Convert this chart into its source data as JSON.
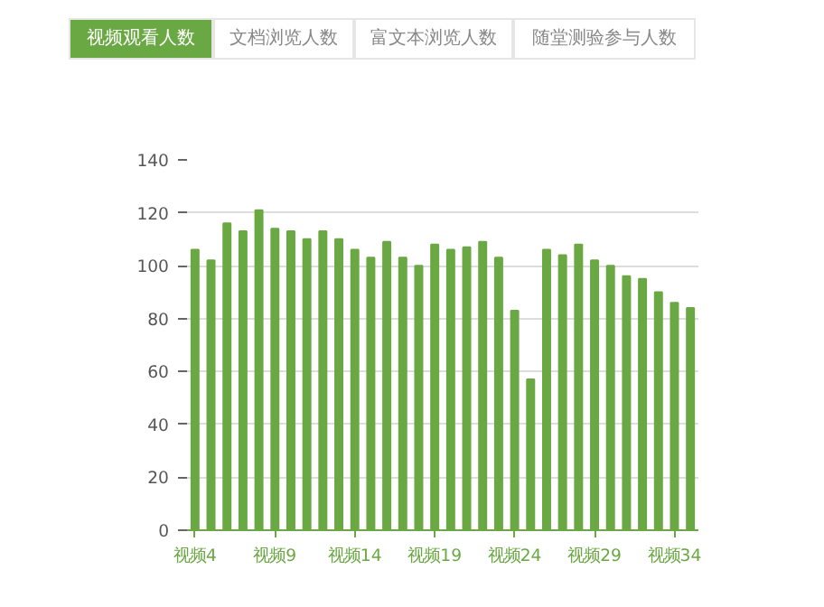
{
  "chart_data": {
    "type": "bar",
    "annotations": [
      "视频观看人数",
      "文档浏览人数",
      "富文本浏览人数",
      "随堂测验参与人数"
    ],
    "categories": [
      "视频4",
      null,
      null,
      null,
      null,
      "视频9",
      null,
      null,
      null,
      null,
      "视频14",
      null,
      null,
      null,
      null,
      "视频19",
      null,
      null,
      null,
      null,
      "视频24",
      null,
      null,
      null,
      null,
      "视频29",
      null,
      null,
      null,
      null,
      "视频34",
      null
    ],
    "values": [
      106,
      102,
      116,
      113,
      121,
      114,
      113,
      110,
      113,
      110,
      106,
      103,
      109,
      103,
      100,
      108,
      106,
      107,
      109,
      103,
      83,
      57,
      106,
      104,
      108,
      102,
      100,
      96,
      95,
      90,
      86,
      84
    ],
    "color": "#6aa843",
    "ylim": [
      0,
      140
    ],
    "yticks": [
      0,
      20,
      40,
      60,
      80,
      100,
      120,
      140
    ],
    "grid": "y"
  }
}
